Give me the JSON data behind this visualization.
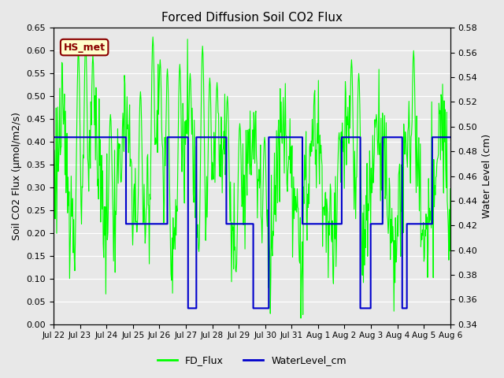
{
  "title": "Forced Diffusion Soil CO2 Flux",
  "ylabel_left": "Soil CO2 Flux (μmol/m2/s)",
  "ylabel_right": "Water Level (cm)",
  "ylim_left": [
    0.0,
    0.65
  ],
  "ylim_right": [
    0.34,
    0.58
  ],
  "background_color": "#e8e8e8",
  "fd_flux_color": "#00ff00",
  "water_level_color": "#0000cc",
  "annotation_text": "HS_met",
  "annotation_bg": "#ffffcc",
  "annotation_border": "#8b0000",
  "annotation_text_color": "#8b0000",
  "legend_fd": "FD_Flux",
  "legend_wl": "WaterLevel_cm",
  "xtick_labels": [
    "Jul 22",
    "Jul 23",
    "Jul 24",
    "Jul 25",
    "Jul 26",
    "Jul 27",
    "Jul 28",
    "Jul 29",
    "Jul 30",
    "Jul 31",
    "Aug 1",
    "Aug 2",
    "Aug 3",
    "Aug 4",
    "Aug 5",
    "Aug 6"
  ],
  "n_days": 15
}
